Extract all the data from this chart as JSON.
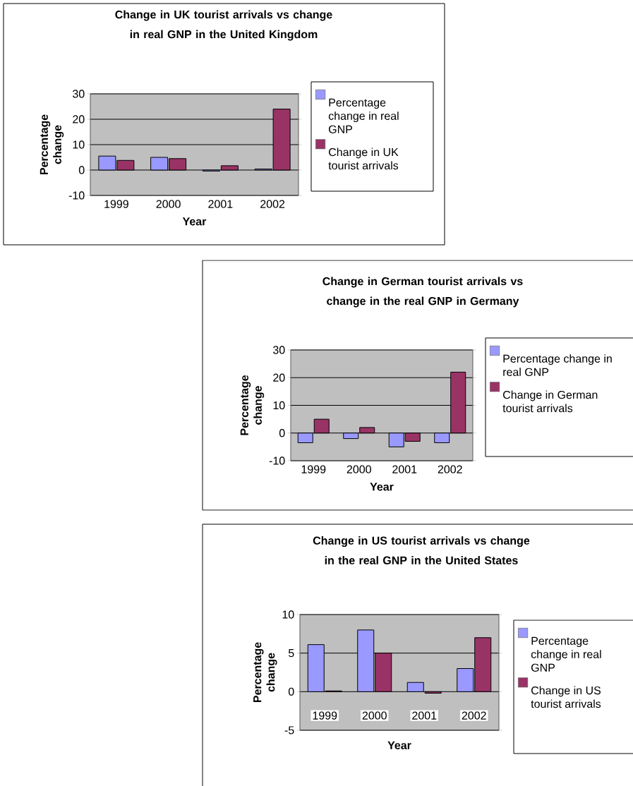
{
  "chart_data": [
    {
      "type": "bar",
      "title": "Change in UK tourist arrivals vs change in real GNP in the United Kingdom",
      "xlabel": "Year",
      "ylabel": "Percentage change",
      "categories": [
        "1999",
        "2000",
        "2001",
        "2002"
      ],
      "series": [
        {
          "name": "Percentage change in real GNP",
          "color": "#9999ff",
          "values": [
            5.5,
            5.0,
            -0.4,
            0.4
          ]
        },
        {
          "name": "Change in UK tourist arrivals",
          "color": "#993366",
          "values": [
            3.8,
            4.5,
            1.7,
            24
          ]
        }
      ],
      "ylim": [
        -10,
        30
      ],
      "yticks": [
        -10,
        0,
        10,
        20,
        30
      ],
      "grid": "y",
      "legend": "right"
    },
    {
      "type": "bar",
      "title": "Change in German tourist arrivals vs change in the real GNP in Germany",
      "xlabel": "Year",
      "ylabel": "Percentage change",
      "categories": [
        "1999",
        "2000",
        "2001",
        "2002"
      ],
      "series": [
        {
          "name": "Percentage change in real GNP",
          "color": "#9999ff",
          "values": [
            -3.5,
            -2,
            -5,
            -3.5
          ]
        },
        {
          "name": "Change in German tourist arrivals",
          "color": "#993366",
          "values": [
            5,
            2,
            -3,
            22
          ]
        }
      ],
      "ylim": [
        -10,
        30
      ],
      "yticks": [
        -10,
        0,
        10,
        20,
        30
      ],
      "grid": "y",
      "legend": "right"
    },
    {
      "type": "bar",
      "title": "Change in US tourist arrivals vs change in the real GNP in the United States",
      "xlabel": "Year",
      "ylabel": "Percentage change",
      "categories": [
        "1999",
        "2000",
        "2001",
        "2002"
      ],
      "series": [
        {
          "name": "Percentage change in real GNP",
          "color": "#9999ff",
          "values": [
            6.1,
            8,
            1.2,
            3
          ]
        },
        {
          "name": "Change in US tourist arrivals",
          "color": "#993366",
          "values": [
            0.1,
            5,
            -0.2,
            7
          ]
        }
      ],
      "ylim": [
        -5,
        10
      ],
      "yticks": [
        -5,
        0,
        5,
        10
      ],
      "grid": "y",
      "legend": "right"
    }
  ]
}
